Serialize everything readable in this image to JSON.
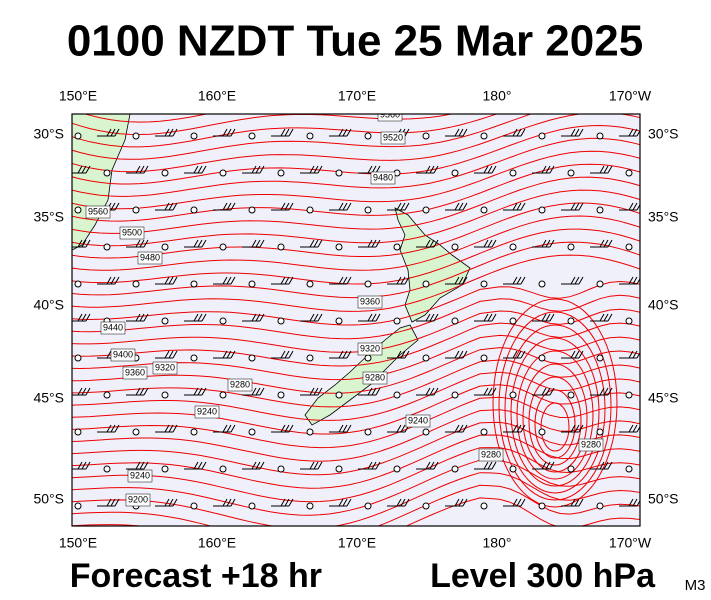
{
  "title": "0100 NZDT Tue 25 Mar 2025",
  "footer": {
    "forecast": "Forecast +18 hr",
    "level": "Level 300 hPa",
    "model": "M3"
  },
  "longitudes": [
    "150°E",
    "160°E",
    "170°E",
    "180°",
    "170°W"
  ],
  "latitudes": [
    "30°S",
    "35°S",
    "40°S",
    "45°S",
    "50°S"
  ],
  "contour_labels": [
    "9560",
    "9520",
    "9480",
    "9560",
    "9500",
    "9480",
    "9440",
    "9400",
    "9360",
    "9320",
    "9280",
    "9240",
    "9240",
    "9200",
    "9360",
    "9320",
    "9280",
    "9240",
    "9280",
    "9280"
  ]
}
